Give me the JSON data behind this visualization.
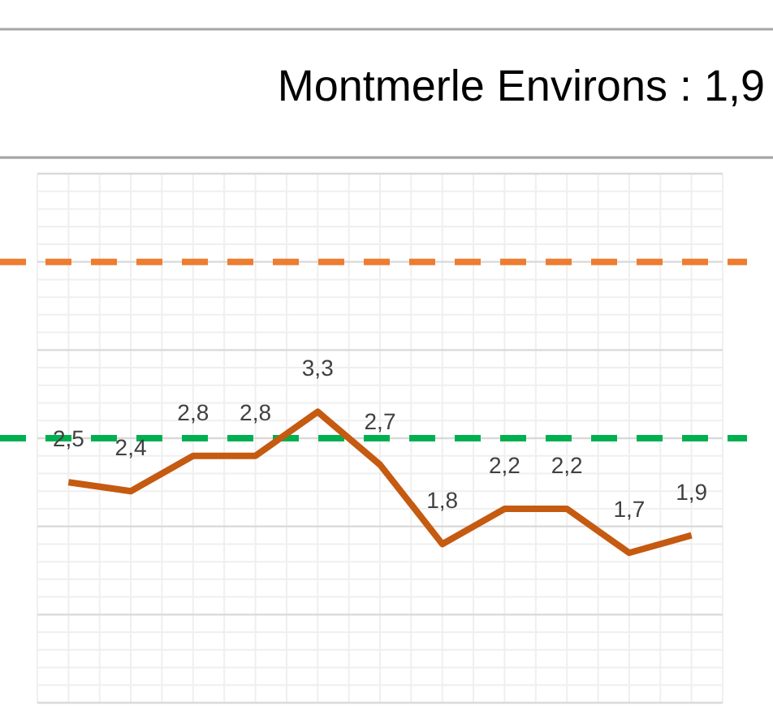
{
  "chart_data": {
    "type": "line",
    "title": "Montmerle Environs : 1,9",
    "categories": [
      null,
      null,
      null,
      null,
      null,
      null,
      null,
      null,
      null,
      null,
      null
    ],
    "series": [
      {
        "color": "#c55a11",
        "values": [
          2.5,
          2.4,
          2.8,
          2.8,
          3.3,
          2.7,
          1.8,
          2.2,
          2.2,
          1.7,
          1.9
        ],
        "value_labels": [
          "2,5",
          "2,4",
          "2,8",
          "2,8",
          "3,3",
          "2,7",
          "1,8",
          "2,2",
          "2,2",
          "1,7",
          "1,9"
        ]
      }
    ],
    "ylim": [
      0,
      6
    ],
    "yticks": [
      {
        "value": 0,
        "label": null
      },
      {
        "value": 1,
        "label": null
      },
      {
        "value": 2,
        "label": null
      },
      {
        "value": 3,
        "label": null
      },
      {
        "value": 4,
        "label": null
      },
      {
        "value": 5,
        "label": null
      },
      {
        "value": 6,
        "label": null
      }
    ],
    "grid": true,
    "marker": "none",
    "line_style": "solid",
    "ref_lines": [
      {
        "axis": "y",
        "value": 5,
        "color": "#ed7d31",
        "line_style": "dashed"
      },
      {
        "axis": "y",
        "value": 3,
        "color": "#00b050",
        "line_style": "dashed"
      }
    ]
  }
}
